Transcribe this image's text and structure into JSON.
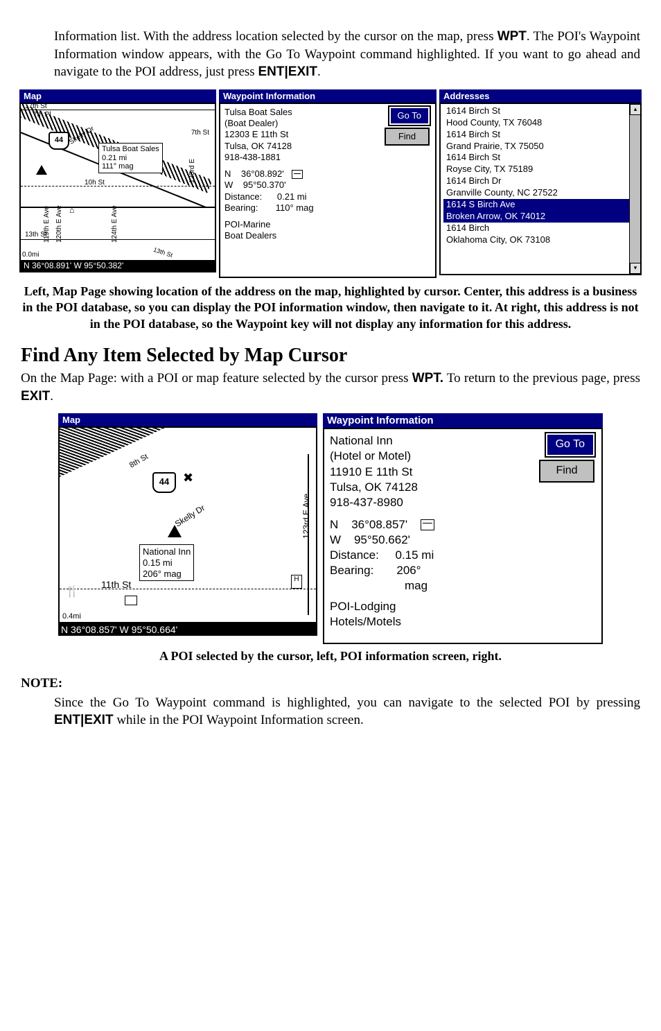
{
  "intro": {
    "p1_prefix": "Information list. With the address location selected by the cursor on the map, press ",
    "p1_key1": "WPT",
    "p1_mid": ". The POI's Waypoint Information window appears, with the Go To Waypoint command highlighted. If you want to go ahead and navigate to the POI address, just press ",
    "p1_key2": "ENT",
    "p1_pipe": "|",
    "p1_key3": "EXIT",
    "p1_end": "."
  },
  "fig1": {
    "map": {
      "title": "Map",
      "streets": {
        "s7th": "7th St",
        "s17th": "17th St",
        "s7thPl": "7th Pl",
        "sdiag": "Skelly Dr",
        "s10h": "10h St",
        "s11th": "11th St",
        "s13th": "13th St",
        "v119": "119th E Ave",
        "v120": "120th E Ave",
        "v123": "123rd E Ave",
        "v124": "124th E Ave",
        "tail": "13th St"
      },
      "shield": "44",
      "tooltip": {
        "l1": "Tulsa Boat Sales",
        "l2": "0.21 mi",
        "l3": "111° mag"
      },
      "scale": "0.0mi",
      "status": "N   36°08.891'   W   95°50.382'"
    },
    "wpt": {
      "title": "Waypoint Information",
      "name": "Tulsa Boat Sales",
      "type": "(Boat Dealer)",
      "addr": "12303 E 11th St",
      "city": "Tulsa, OK 74128",
      "phone": "918-438-1881",
      "lat_lbl": "N",
      "lat": "36°08.892'",
      "lon_lbl": "W",
      "lon": "95°50.370'",
      "dist_lbl": "Distance:",
      "dist": "0.21 mi",
      "brg_lbl": "Bearing:",
      "brg": "110° mag",
      "cat1": "POI-Marine",
      "cat2": "Boat Dealers",
      "btn_goto": "Go To",
      "btn_find": "Find"
    },
    "addr": {
      "title": "Addresses",
      "items": [
        {
          "l1": "1614 Birch St",
          "l2": "Hood County, TX  76048",
          "hl": false
        },
        {
          "l1": "1614 Birch St",
          "l2": "Grand Prairie, TX  75050",
          "hl": false
        },
        {
          "l1": "1614 Birch St",
          "l2": "Royse City, TX  75189",
          "hl": false
        },
        {
          "l1": "1614 Birch Dr",
          "l2": "Granville County, NC  27522",
          "hl": false
        },
        {
          "l1": "1614 S Birch Ave",
          "l2": "Broken Arrow, OK  74012",
          "hl": true
        },
        {
          "l1": "1614 Birch",
          "l2": "Oklahoma City, OK  73108",
          "hl": false
        }
      ]
    },
    "caption": "Left, Map Page showing location of the address on the map, highlighted by cursor. Center, this address is a business in the POI database, so you can display the POI information window, then navigate to it. At right, this address is not in the POI database, so the Waypoint key will not display any information for this address."
  },
  "section": {
    "heading": "Find Any Item Selected by Map Cursor",
    "p_prefix": "On the Map Page: with a POI or map feature selected by the cursor press ",
    "p_key1": "WPT.",
    "p_mid": " To return to the previous page, press ",
    "p_key2": "EXIT",
    "p_end": "."
  },
  "fig2": {
    "map": {
      "title": "Map",
      "streets": {
        "s8th": "8th St",
        "s11th": "11th St",
        "diag": "Skelly Dr",
        "v123": "123rd E Ave"
      },
      "shield": "44",
      "tooltip": {
        "l1": "National Inn",
        "l2": "0.15 mi",
        "l3": "206° mag"
      },
      "scale": "0.4mi",
      "status": "N   36°08.857'   W   95°50.664'"
    },
    "wpt": {
      "title": "Waypoint Information",
      "name": "National Inn",
      "type": "(Hotel or Motel)",
      "addr": "11910 E 11th St",
      "city": "Tulsa, OK 74128",
      "phone": "918-437-8980",
      "lat_lbl": "N",
      "lat": "36°08.857'",
      "lon_lbl": "W",
      "lon": "95°50.662'",
      "dist_lbl": "Distance:",
      "dist": "0.15 mi",
      "brg_lbl": "Bearing:",
      "brg": "206°",
      "brg_unit": "mag",
      "cat1": "POI-Lodging",
      "cat2": "Hotels/Motels",
      "btn_goto": "Go To",
      "btn_find": "Find"
    },
    "caption": "A POI selected by the cursor, left, POI information screen, right."
  },
  "note": {
    "head": "NOTE:",
    "p_prefix": "Since the Go To Waypoint command is highlighted, you can navigate to the selected POI by pressing ",
    "p_key1": "ENT",
    "p_pipe": "|",
    "p_key2": "EXIT",
    "p_mid": " while in the POI Waypoint Information screen."
  }
}
